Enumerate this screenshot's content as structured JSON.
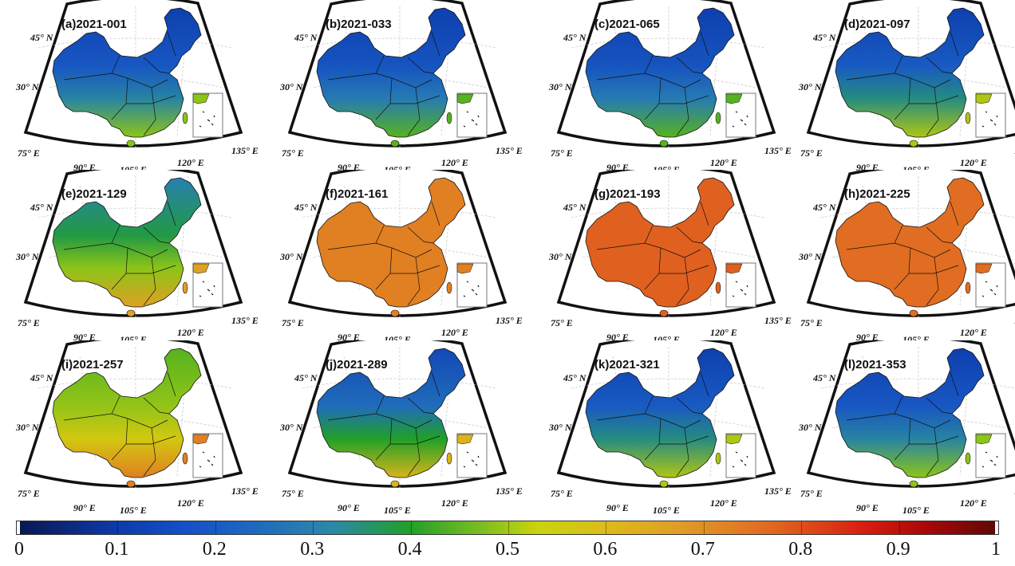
{
  "panels": [
    {
      "title": "(a)2021-001",
      "north": 0.12,
      "south": 0.5
    },
    {
      "title": "(b)2021-033",
      "north": 0.12,
      "south": 0.45
    },
    {
      "title": "(c)2021-065",
      "north": 0.12,
      "south": 0.45
    },
    {
      "title": "(d)2021-097",
      "north": 0.12,
      "south": 0.55
    },
    {
      "title": "(e)2021-129",
      "north": 0.3,
      "south": 0.7
    },
    {
      "title": "(f)2021-161",
      "north": 0.75,
      "south": 0.75
    },
    {
      "title": "(g)2021-193",
      "north": 0.8,
      "south": 0.8
    },
    {
      "title": "(h)2021-225",
      "north": 0.78,
      "south": 0.78
    },
    {
      "title": "(i)2021-257",
      "north": 0.45,
      "south": 0.75
    },
    {
      "title": "(j)2021-289",
      "north": 0.15,
      "south": 0.65
    },
    {
      "title": "(k)2021-321",
      "north": 0.12,
      "south": 0.55
    },
    {
      "title": "(l)2021-353",
      "north": 0.12,
      "south": 0.5
    }
  ],
  "axis_labels": {
    "lat45": "45° N",
    "lat30": "30° N",
    "lon75": "75° E",
    "lon90": "90° E",
    "lon105": "105° E",
    "lon120": "120° E",
    "lon135": "135° E"
  },
  "colorbar": {
    "min": 0,
    "max": 1,
    "ticks": [
      "0",
      "0.1",
      "0.2",
      "0.3",
      "0.4",
      "0.5",
      "0.6",
      "0.7",
      "0.8",
      "0.9",
      "1"
    ],
    "colormap": "jet-like dark blue to dark red"
  }
}
